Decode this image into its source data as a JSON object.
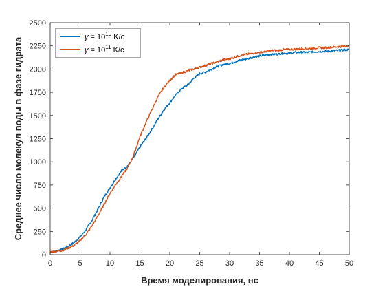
{
  "chart_data": {
    "type": "line",
    "xlabel": "Время моделирования, нс",
    "ylabel": "Среднее число молекул воды в фазе гидрата",
    "xlim": [
      0,
      50
    ],
    "ylim": [
      0,
      2500
    ],
    "xticks": [
      0,
      5,
      10,
      15,
      20,
      25,
      30,
      35,
      40,
      45,
      50
    ],
    "yticks": [
      0,
      250,
      500,
      750,
      1000,
      1250,
      1500,
      1750,
      2000,
      2250,
      2500
    ],
    "grid": false,
    "legend_position": "top-left",
    "series": [
      {
        "name_prefix": "γ = 10",
        "name_exp": "10",
        "name_suffix": " K/c",
        "color": "#0072BD",
        "x": [
          0,
          1,
          2,
          3,
          4,
          5,
          6,
          7,
          8,
          9,
          10,
          11,
          12,
          13,
          14,
          15,
          16,
          17,
          18,
          19,
          20,
          21,
          22,
          23,
          24,
          25,
          26,
          27,
          28,
          29,
          30,
          31,
          32,
          33,
          34,
          35,
          36,
          37,
          38,
          39,
          40,
          41,
          42,
          43,
          44,
          45,
          46,
          47,
          48,
          49,
          50
        ],
        "values": [
          30,
          40,
          60,
          90,
          130,
          190,
          270,
          370,
          490,
          620,
          720,
          820,
          910,
          960,
          1050,
          1160,
          1250,
          1350,
          1460,
          1560,
          1640,
          1720,
          1790,
          1830,
          1900,
          1950,
          1970,
          2000,
          2030,
          2050,
          2060,
          2080,
          2100,
          2110,
          2130,
          2140,
          2150,
          2160,
          2160,
          2170,
          2170,
          2180,
          2180,
          2180,
          2185,
          2190,
          2190,
          2195,
          2200,
          2205,
          2210
        ]
      },
      {
        "name_prefix": "γ = 10",
        "name_exp": "11",
        "name_suffix": " K/c",
        "color": "#D95319",
        "x": [
          0,
          1,
          2,
          3,
          4,
          5,
          6,
          7,
          8,
          9,
          10,
          11,
          12,
          13,
          14,
          15,
          16,
          17,
          18,
          19,
          20,
          21,
          22,
          23,
          24,
          25,
          26,
          27,
          28,
          29,
          30,
          31,
          32,
          33,
          34,
          35,
          36,
          37,
          38,
          39,
          40,
          41,
          42,
          43,
          44,
          45,
          46,
          47,
          48,
          49,
          50
        ],
        "values": [
          30,
          35,
          45,
          70,
          100,
          150,
          220,
          310,
          420,
          540,
          660,
          760,
          850,
          940,
          1080,
          1270,
          1420,
          1560,
          1700,
          1800,
          1880,
          1940,
          1960,
          1980,
          2000,
          2020,
          2040,
          2060,
          2080,
          2100,
          2110,
          2130,
          2150,
          2160,
          2170,
          2180,
          2190,
          2200,
          2200,
          2210,
          2210,
          2215,
          2220,
          2220,
          2225,
          2230,
          2230,
          2235,
          2240,
          2245,
          2250
        ]
      }
    ]
  }
}
